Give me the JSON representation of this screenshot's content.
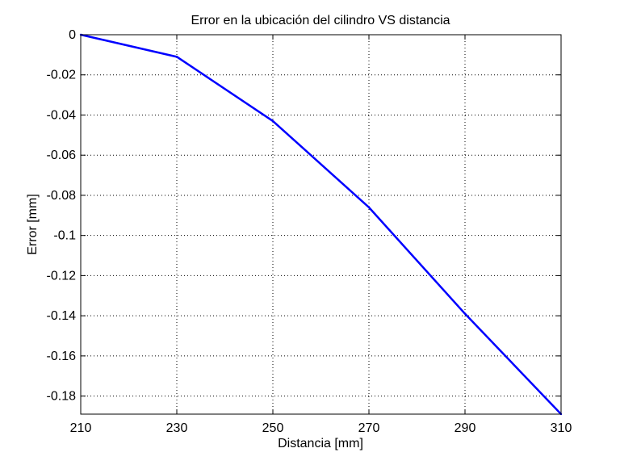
{
  "chart_data": {
    "type": "line",
    "title": "Error en la ubicación del cilindro VS distancia",
    "xlabel": "Distancia [mm]",
    "ylabel": "Error [mm]",
    "xlim": [
      210,
      310
    ],
    "ylim": [
      -0.189,
      0
    ],
    "xticks": [
      210,
      230,
      250,
      270,
      290,
      310
    ],
    "xtick_labels": [
      "210",
      "230",
      "250",
      "270",
      "290",
      "310"
    ],
    "yticks": [
      0,
      -0.02,
      -0.04,
      -0.06,
      -0.08,
      -0.1,
      -0.12,
      -0.14,
      -0.16,
      -0.18
    ],
    "ytick_labels": [
      "0",
      "-0.02",
      "-0.04",
      "-0.06",
      "-0.08",
      "-0.1",
      "-0.12",
      "-0.14",
      "-0.16",
      "-0.18"
    ],
    "grid": true,
    "series": [
      {
        "color": "#0000ff",
        "x": [
          210,
          230,
          250,
          270,
          290,
          310
        ],
        "y": [
          0,
          -0.011,
          -0.043,
          -0.086,
          -0.139,
          -0.189
        ]
      }
    ]
  }
}
